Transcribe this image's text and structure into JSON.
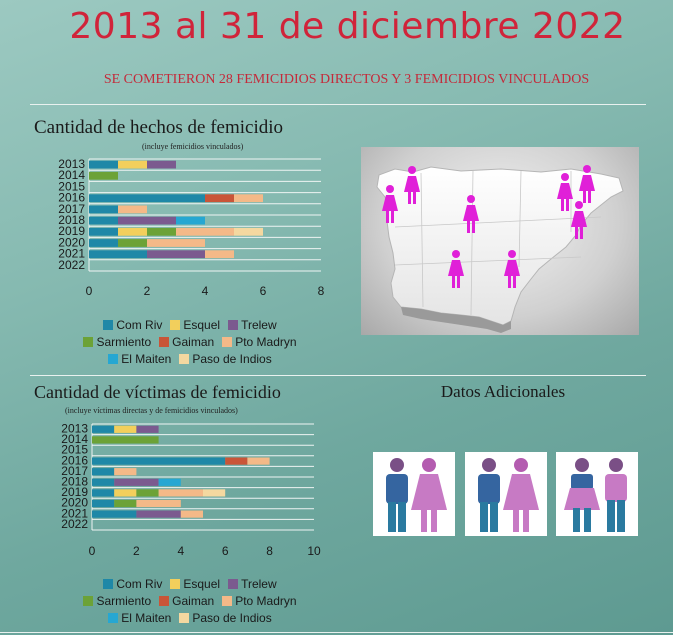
{
  "header": {
    "title": "2013 al 31 de diciembre 2022",
    "subtitle": "SE COMETIERON 28 FEMICIDIOS DIRECTOS Y 3 FEMICIDIOS VINCULADOS"
  },
  "colors": {
    "Com Riv": "#1f88a7",
    "Esquel": "#f2cf5c",
    "Trelew": "#7b5a8f",
    "Sarmiento": "#6ca237",
    "Gaiman": "#c95538",
    "Pto Madryn": "#f4b988",
    "El Maiten": "#26a7d2",
    "Paso de Indios": "#f4d8a0"
  },
  "additional": {
    "title": "Datos Adicionales",
    "icons": [
      "couple-icon-man-woman",
      "couple-icon-man-woman-2",
      "couple-icon-woman-man"
    ]
  },
  "map": {
    "icon": "female-marker-icon",
    "markers": 8
  },
  "chart_data": [
    {
      "type": "bar",
      "orientation": "horizontal",
      "stacked": true,
      "title": "Cantidad de hechos de femicidio",
      "note": "(incluye femicidios vinculados)",
      "categories": [
        "2013",
        "2014",
        "2015",
        "2016",
        "2017",
        "2018",
        "2019",
        "2020",
        "2021",
        "2022"
      ],
      "xlim": [
        0,
        8
      ],
      "xticks": [
        0,
        2,
        4,
        6,
        8
      ],
      "series": [
        {
          "name": "Com Riv",
          "values": [
            1,
            0,
            0,
            4,
            1,
            1,
            1,
            1,
            2,
            0
          ]
        },
        {
          "name": "Esquel",
          "values": [
            1,
            0,
            0,
            0,
            0,
            0,
            1,
            0,
            0,
            0
          ]
        },
        {
          "name": "Trelew",
          "values": [
            1,
            0,
            0,
            0,
            0,
            2,
            0,
            0,
            2,
            0
          ]
        },
        {
          "name": "Sarmiento",
          "values": [
            0,
            1,
            0,
            0,
            0,
            0,
            1,
            1,
            0,
            0
          ]
        },
        {
          "name": "Gaiman",
          "values": [
            0,
            0,
            0,
            1,
            0,
            0,
            0,
            0,
            0,
            0
          ]
        },
        {
          "name": "Pto Madryn",
          "values": [
            0,
            0,
            0,
            1,
            1,
            0,
            2,
            2,
            1,
            0
          ]
        },
        {
          "name": "El Maiten",
          "values": [
            0,
            0,
            0,
            0,
            0,
            1,
            0,
            0,
            0,
            0
          ]
        },
        {
          "name": "Paso de Indios",
          "values": [
            0,
            0,
            0,
            0,
            0,
            0,
            1,
            0,
            0,
            0
          ]
        }
      ],
      "legend_position": "bottom"
    },
    {
      "type": "bar",
      "orientation": "horizontal",
      "stacked": true,
      "title": "Cantidad de víctimas de femicidio",
      "note": "(incluye víctimas directas y de femicidios vinculados)",
      "categories": [
        "2013",
        "2014",
        "2015",
        "2016",
        "2017",
        "2018",
        "2019",
        "2020",
        "2021",
        "2022"
      ],
      "xlim": [
        0,
        10
      ],
      "xticks": [
        0,
        2,
        4,
        6,
        8,
        10
      ],
      "series": [
        {
          "name": "Com Riv",
          "values": [
            1,
            0,
            0,
            6,
            1,
            1,
            1,
            1,
            2,
            0
          ]
        },
        {
          "name": "Esquel",
          "values": [
            1,
            0,
            0,
            0,
            0,
            0,
            1,
            0,
            0,
            0
          ]
        },
        {
          "name": "Trelew",
          "values": [
            1,
            0,
            0,
            0,
            0,
            2,
            0,
            0,
            2,
            0
          ]
        },
        {
          "name": "Sarmiento",
          "values": [
            0,
            3,
            0,
            0,
            0,
            0,
            1,
            1,
            0,
            0
          ]
        },
        {
          "name": "Gaiman",
          "values": [
            0,
            0,
            0,
            1,
            0,
            0,
            0,
            0,
            0,
            0
          ]
        },
        {
          "name": "Pto Madryn",
          "values": [
            0,
            0,
            0,
            1,
            1,
            0,
            2,
            2,
            1,
            0
          ]
        },
        {
          "name": "El Maiten",
          "values": [
            0,
            0,
            0,
            0,
            0,
            1,
            0,
            0,
            0,
            0
          ]
        },
        {
          "name": "Paso de Indios",
          "values": [
            0,
            0,
            0,
            0,
            0,
            0,
            1,
            0,
            0,
            0
          ]
        }
      ],
      "legend_position": "bottom"
    }
  ]
}
